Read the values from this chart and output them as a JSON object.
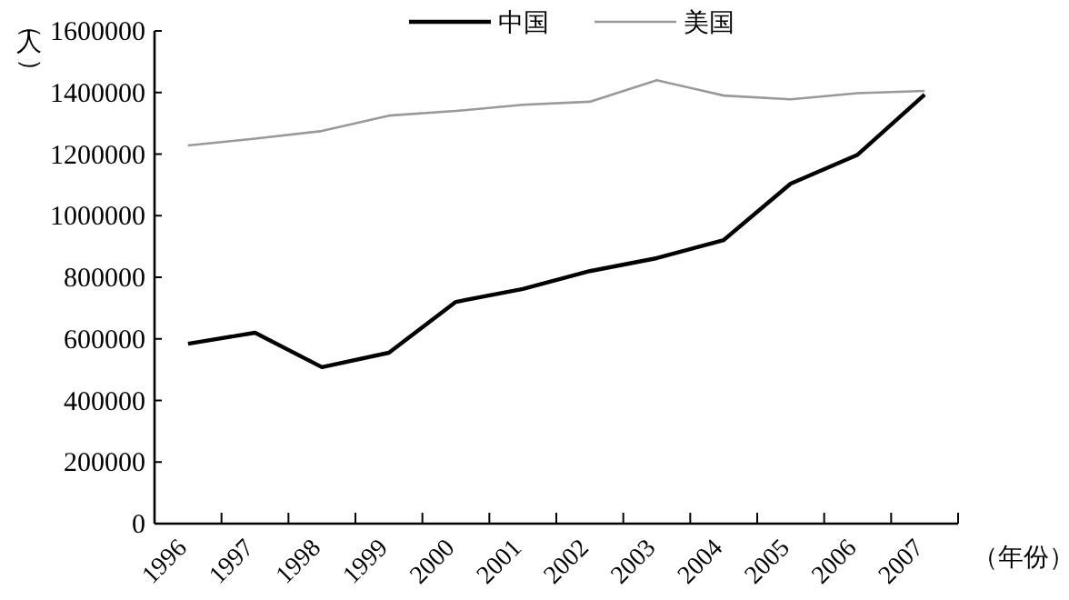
{
  "chart_data": {
    "type": "line",
    "ylabel": "（人）",
    "xlabel": "（年份）",
    "legend": "top",
    "categories": [
      "1996",
      "1997",
      "1998",
      "1999",
      "2000",
      "2001",
      "2002",
      "2003",
      "2004",
      "2005",
      "2006",
      "2007"
    ],
    "ylim": [
      0,
      1600000
    ],
    "yticks": [
      0,
      200000,
      400000,
      600000,
      800000,
      1000000,
      1200000,
      1400000,
      1600000
    ],
    "series": [
      {
        "name": "中国",
        "color": "#000000",
        "values": [
          584000,
          620000,
          508000,
          555000,
          720000,
          762000,
          820000,
          862000,
          921000,
          1104000,
          1198000,
          1393000
        ]
      },
      {
        "name": "美国",
        "color": "#999999",
        "values": [
          1228000,
          1250000,
          1275000,
          1325000,
          1340000,
          1360000,
          1370000,
          1440000,
          1390000,
          1378000,
          1398000,
          1405000
        ]
      }
    ]
  }
}
